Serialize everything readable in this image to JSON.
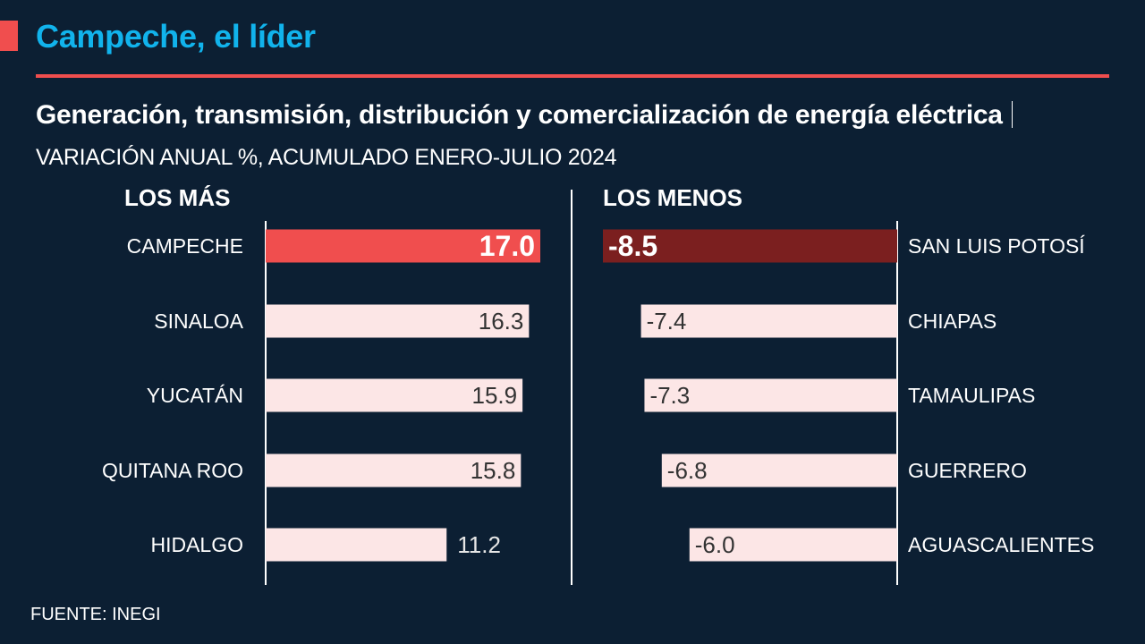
{
  "header": {
    "title": "Campeche, el líder",
    "subtitle_bold": "Generación, transmisión, distribución y comercialización de energía eléctrica",
    "subtitle_unit": "VARIACIÓN ANUAL %, ACUMULADO ENERO-JULIO 2024"
  },
  "footer": {
    "source": "FUENTE: INEGI"
  },
  "colors": {
    "background": "#0c1f33",
    "title_accent": "#11b3ec",
    "rule": "#f04e4e",
    "top_highlight": "#f04e4e",
    "bottom_highlight": "#7b1f1f",
    "bar_default": "#fce6e6",
    "bar_text": "#333333"
  },
  "chart_data": [
    {
      "type": "bar",
      "orientation": "horizontal",
      "title": "LOS MÁS",
      "categories": [
        "CAMPECHE",
        "SINALOA",
        "YUCATÁN",
        "QUITANA ROO",
        "HIDALGO"
      ],
      "values": [
        17.0,
        16.3,
        15.9,
        15.8,
        11.2
      ],
      "labels": [
        "17.0",
        "16.3",
        "15.9",
        "15.8",
        "11.2"
      ],
      "highlight_index": 0,
      "unit": "%",
      "xlim": [
        0,
        17.0
      ]
    },
    {
      "type": "bar",
      "orientation": "horizontal",
      "title": "LOS MENOS",
      "categories": [
        "SAN LUIS POTOSÍ",
        "CHIAPAS",
        "TAMAULIPAS",
        "GUERRERO",
        "AGUASCALIENTES"
      ],
      "values": [
        -8.5,
        -7.4,
        -7.3,
        -6.8,
        -6.0
      ],
      "labels": [
        "-8.5",
        "-7.4",
        "-7.3",
        "-6.8",
        "-6.0"
      ],
      "highlight_index": 0,
      "unit": "%",
      "xlim": [
        -8.5,
        0
      ]
    }
  ]
}
